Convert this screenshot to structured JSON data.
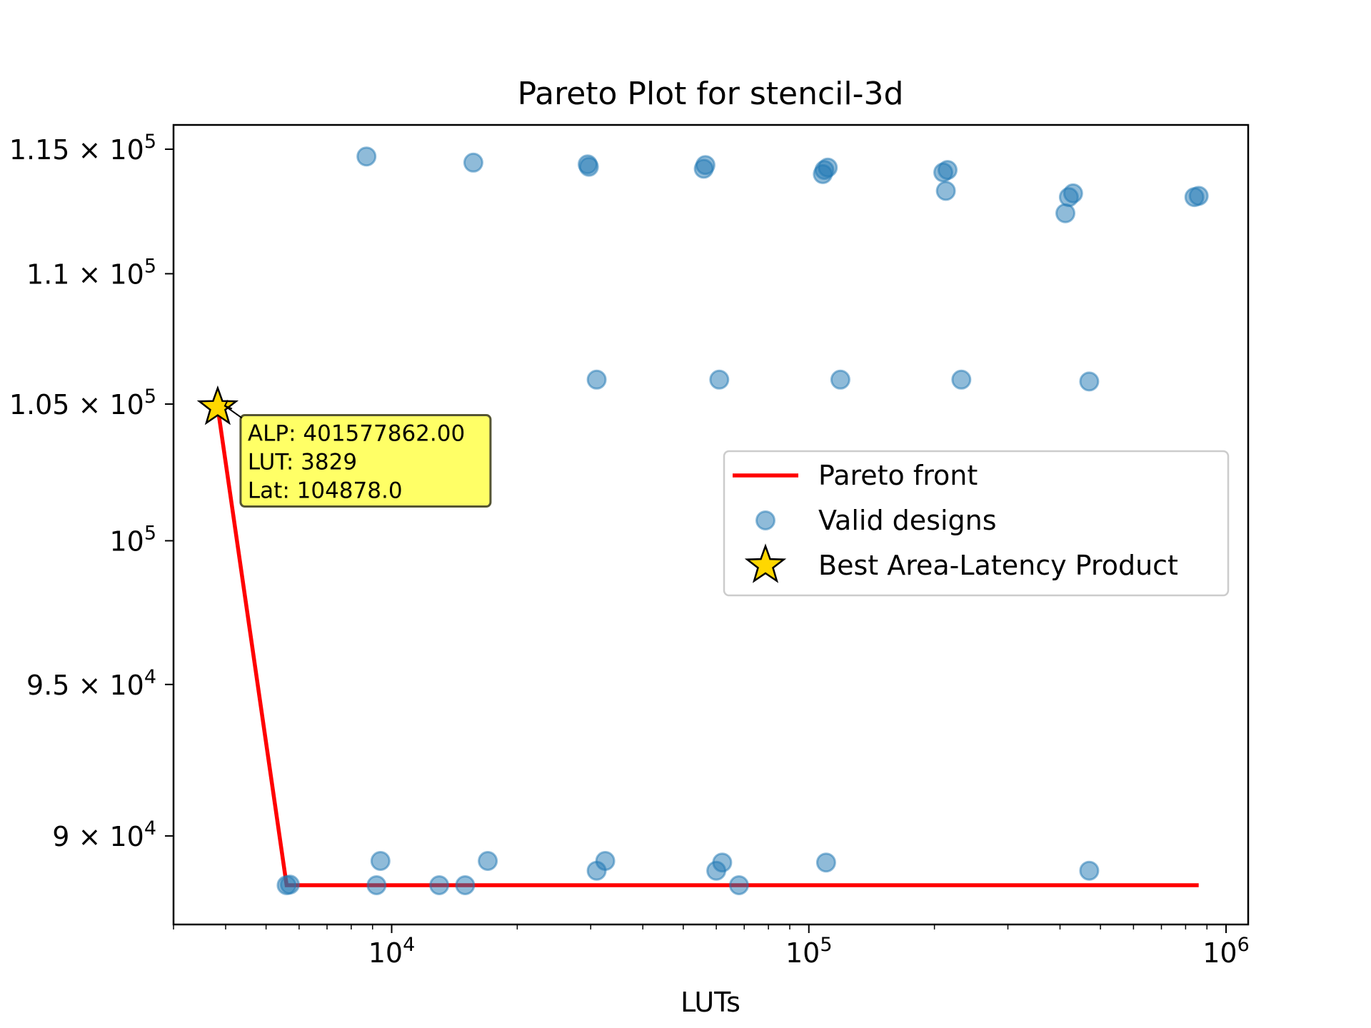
{
  "chart_data": {
    "type": "scatter",
    "title": "Pareto Plot for stencil-3d",
    "xlabel": "LUTs",
    "ylabel": "",
    "xscale": "log",
    "yscale": "log",
    "xlim": [
      3000,
      1130000
    ],
    "ylim": [
      87200,
      116000
    ],
    "grid": false,
    "legend_placement": "center-right",
    "x_ticks": [
      {
        "value": 10000,
        "label": "10^4",
        "base": "10",
        "exp": "4"
      },
      {
        "value": 100000,
        "label": "10^5",
        "base": "10",
        "exp": "5"
      },
      {
        "value": 1000000,
        "label": "10^6",
        "base": "10",
        "exp": "6"
      }
    ],
    "y_ticks": [
      {
        "value": 90000,
        "label": "9 × 10^4",
        "base": "9 × 10",
        "exp": "4"
      },
      {
        "value": 95000,
        "label": "9.5 × 10^4",
        "base": "9.5 × 10",
        "exp": "4"
      },
      {
        "value": 100000,
        "label": "10^5",
        "base": "10",
        "exp": "5"
      },
      {
        "value": 105000,
        "label": "1.05 × 10^5",
        "base": "1.05 × 10",
        "exp": "5"
      },
      {
        "value": 110000,
        "label": "1.1 × 10^5",
        "base": "1.1 × 10",
        "exp": "5"
      },
      {
        "value": 115000,
        "label": "1.15 × 10^5",
        "base": "1.15 × 10",
        "exp": "5"
      }
    ],
    "series": [
      {
        "name": "Pareto front",
        "kind": "line",
        "color": "#ff0000",
        "points": [
          [
            3829,
            104878
          ],
          [
            5600,
            88430
          ],
          [
            860000,
            88430
          ]
        ]
      },
      {
        "name": "Valid designs",
        "kind": "scatter",
        "color": "#1f77b4",
        "points": [
          [
            8700,
            114700
          ],
          [
            15700,
            114450
          ],
          [
            29500,
            114380
          ],
          [
            29700,
            114280
          ],
          [
            56000,
            114200
          ],
          [
            56500,
            114350
          ],
          [
            108000,
            113980
          ],
          [
            111000,
            114250
          ],
          [
            109000,
            114150
          ],
          [
            210000,
            114050
          ],
          [
            215000,
            114150
          ],
          [
            213000,
            113300
          ],
          [
            420000,
            113050
          ],
          [
            430000,
            113200
          ],
          [
            412000,
            112400
          ],
          [
            840000,
            113050
          ],
          [
            860000,
            113100
          ],
          [
            31000,
            105920
          ],
          [
            61000,
            105920
          ],
          [
            119000,
            105920
          ],
          [
            232000,
            105920
          ],
          [
            470000,
            105850
          ],
          [
            5600,
            88430
          ],
          [
            5700,
            88450
          ],
          [
            9200,
            88430
          ],
          [
            9400,
            89200
          ],
          [
            13000,
            88430
          ],
          [
            15000,
            88430
          ],
          [
            17000,
            89200
          ],
          [
            31000,
            88890
          ],
          [
            32500,
            89200
          ],
          [
            60000,
            88890
          ],
          [
            62000,
            89150
          ],
          [
            68000,
            88430
          ],
          [
            110000,
            89150
          ],
          [
            470000,
            88890
          ]
        ]
      },
      {
        "name": "Best Area-Latency Product",
        "kind": "marker",
        "color": "#ffd700",
        "points": [
          [
            3829,
            104878
          ]
        ]
      }
    ],
    "annotation": {
      "lines": [
        "ALP: 401577862.00",
        "LUT: 3829",
        "Lat: 104878.0"
      ],
      "anchor": [
        3829,
        104878
      ],
      "background": "#ffff66"
    }
  }
}
